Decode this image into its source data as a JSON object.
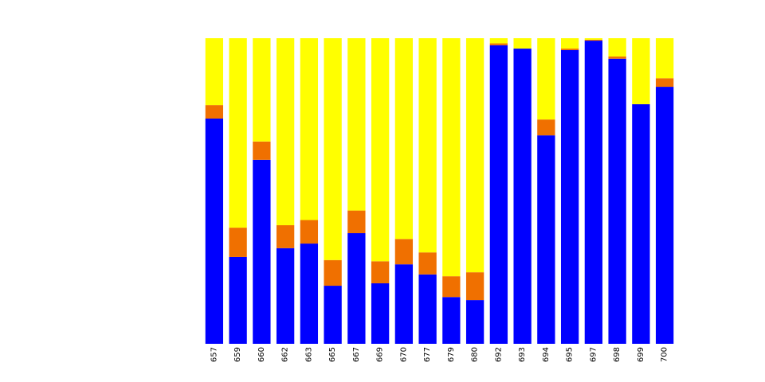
{
  "chart_data": {
    "type": "bar",
    "stacked": true,
    "percent": true,
    "title": "",
    "xlabel": "",
    "ylabel": "",
    "ylim": [
      0,
      1
    ],
    "grid": false,
    "legend": "none",
    "categories": [
      "657",
      "659",
      "660",
      "662",
      "663",
      "665",
      "667",
      "669",
      "670",
      "677",
      "679",
      "680",
      "692",
      "693",
      "694",
      "695",
      "697",
      "698",
      "699",
      "700"
    ],
    "series": [
      {
        "color": "#0000ff",
        "values": [
          0.737,
          0.284,
          0.602,
          0.313,
          0.328,
          0.19,
          0.362,
          0.198,
          0.26,
          0.227,
          0.153,
          0.143,
          0.977,
          0.966,
          0.682,
          0.961,
          0.992,
          0.933,
          0.784,
          0.841
        ]
      },
      {
        "color": "#f07000",
        "values": [
          0.044,
          0.096,
          0.06,
          0.075,
          0.077,
          0.084,
          0.074,
          0.072,
          0.083,
          0.072,
          0.068,
          0.091,
          0.006,
          0.0,
          0.052,
          0.005,
          0.003,
          0.007,
          0.0,
          0.028
        ]
      },
      {
        "color": "#ffff00",
        "values": [
          0.219,
          0.62,
          0.338,
          0.612,
          0.595,
          0.726,
          0.564,
          0.73,
          0.657,
          0.701,
          0.779,
          0.766,
          0.017,
          0.034,
          0.266,
          0.034,
          0.005,
          0.06,
          0.216,
          0.131
        ]
      }
    ]
  }
}
